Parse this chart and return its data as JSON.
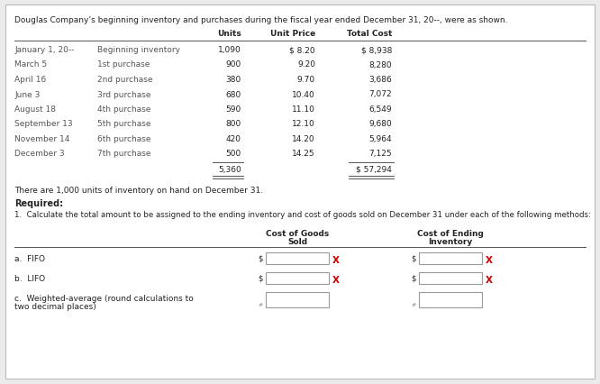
{
  "title": "Douglas Company’s beginning inventory and purchases during the fiscal year ended December 31, 20--, were as shown.",
  "table_rows": [
    [
      "January 1, 20--",
      "Beginning inventory",
      "1,090",
      "$ 8.20",
      "$ 8,938"
    ],
    [
      "March 5",
      "1st purchase",
      "900",
      "9.20",
      "8,280"
    ],
    [
      "April 16",
      "2nd purchase",
      "380",
      "9.70",
      "3,686"
    ],
    [
      "June 3",
      "3rd purchase",
      "680",
      "10.40",
      "7,072"
    ],
    [
      "August 18",
      "4th purchase",
      "590",
      "11.10",
      "6,549"
    ],
    [
      "September 13",
      "5th purchase",
      "800",
      "12.10",
      "9,680"
    ],
    [
      "November 14",
      "6th purchase",
      "420",
      "14.20",
      "5,964"
    ],
    [
      "December 3",
      "7th purchase",
      "500",
      "14.25",
      "7,125"
    ]
  ],
  "total_units": "5,360",
  "total_cost": "$ 57,294",
  "note": "There are 1,000 units of inventory on hand on December 31.",
  "required_label": "Required:",
  "question": "1.  Calculate the total amount to be assigned to the ending inventory and cost of goods sold on December 31 under each of the following methods:",
  "col_header1a": "Cost of Goods",
  "col_header1b": "Sold",
  "col_header2a": "Cost of Ending",
  "col_header2b": "Inventory",
  "method_a": "a.  FIFO",
  "method_b": "b.  LIFO",
  "method_c1": "c.  Weighted-average (round calculations to",
  "method_c2": "two decimal places)",
  "red_x": "#cc0000",
  "bg": "#ebebeb",
  "white": "#ffffff",
  "border": "#bbbbbb",
  "text_dark": "#222222",
  "text_mid": "#555555"
}
